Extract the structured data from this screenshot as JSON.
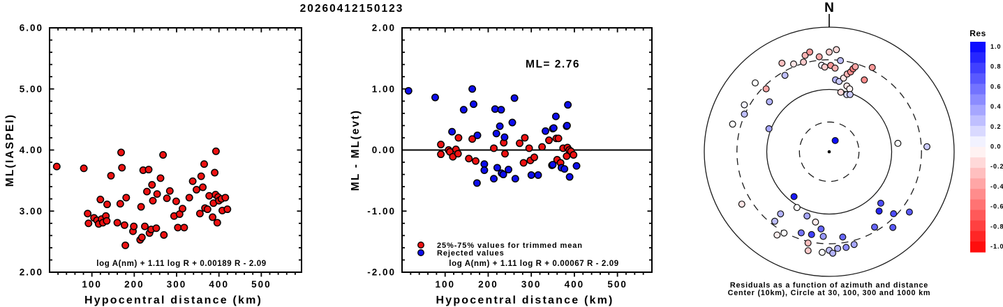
{
  "title": "20260412150123",
  "colors": {
    "marker_red": "#ee1111",
    "marker_blue": "#0d0dee",
    "axis": "#000000",
    "background": "#ffffff",
    "res_positive": "#0000ff",
    "res_zero": "#ffffff",
    "res_negative": "#ff0000"
  },
  "chart_data": [
    {
      "id": "ml_iaspei",
      "type": "scatter",
      "xlabel": "Hypocentral distance (km)",
      "ylabel": "ML(IASPEI)",
      "xlim": [
        0,
        595
      ],
      "ylim": [
        2.0,
        6.0
      ],
      "xticks": [
        100,
        200,
        300,
        400,
        500
      ],
      "xtick_labels": [
        "100",
        "200",
        "300",
        "400",
        "500"
      ],
      "yticks": [
        2,
        3,
        4,
        5,
        6
      ],
      "ytick_labels": [
        "2.00",
        "3.00",
        "4.00",
        "5.00",
        "6.00"
      ],
      "x_minor_step": 20,
      "y_minor_step": 0.2,
      "grid": false,
      "annotation": "log A(nm) + 1.11 log R + 0.00189 R - 2.09",
      "series": [
        {
          "name": "ML station values",
          "color_key": "marker_red",
          "points": [
            [
              17,
              3.73
            ],
            [
              81,
              3.7
            ],
            [
              90,
              2.96
            ],
            [
              92,
              2.8
            ],
            [
              105,
              2.89
            ],
            [
              112,
              2.85
            ],
            [
              116,
              2.79
            ],
            [
              120,
              3.19
            ],
            [
              123,
              2.87
            ],
            [
              126,
              2.81
            ],
            [
              133,
              2.92
            ],
            [
              135,
              2.84
            ],
            [
              136,
              3.11
            ],
            [
              145,
              3.58
            ],
            [
              160,
              2.81
            ],
            [
              167,
              3.12
            ],
            [
              169,
              3.96
            ],
            [
              171,
              3.71
            ],
            [
              177,
              2.77
            ],
            [
              179,
              2.44
            ],
            [
              181,
              3.22
            ],
            [
              197,
              2.67
            ],
            [
              199,
              2.75
            ],
            [
              214,
              2.53
            ],
            [
              216,
              3.07
            ],
            [
              218,
              2.57
            ],
            [
              221,
              3.67
            ],
            [
              225,
              2.75
            ],
            [
              230,
              3.32
            ],
            [
              234,
              3.68
            ],
            [
              236,
              2.64
            ],
            [
              240,
              2.7
            ],
            [
              242,
              3.43
            ],
            [
              244,
              3.17
            ],
            [
              252,
              2.72
            ],
            [
              254,
              3.28
            ],
            [
              262,
              3.54
            ],
            [
              268,
              3.92
            ],
            [
              270,
              2.61
            ],
            [
              277,
              3.21
            ],
            [
              284,
              3.33
            ],
            [
              294,
              2.92
            ],
            [
              299,
              3.16
            ],
            [
              303,
              2.73
            ],
            [
              307,
              2.95
            ],
            [
              314,
              3.04
            ],
            [
              318,
              2.73
            ],
            [
              330,
              3.22
            ],
            [
              338,
              3.49
            ],
            [
              347,
              3.35
            ],
            [
              355,
              2.96
            ],
            [
              358,
              3.57
            ],
            [
              362,
              3.39
            ],
            [
              365,
              3.77
            ],
            [
              367,
              3.05
            ],
            [
              373,
              3.03
            ],
            [
              377,
              3.25
            ],
            [
              385,
              2.9
            ],
            [
              387,
              3.13
            ],
            [
              390,
              3.63
            ],
            [
              392,
              3.27
            ],
            [
              393,
              3.98
            ],
            [
              396,
              2.81
            ],
            [
              398,
              3.23
            ],
            [
              400,
              3.17
            ],
            [
              406,
              3.2
            ],
            [
              408,
              3.01
            ],
            [
              415,
              3.22
            ],
            [
              420,
              3.03
            ]
          ]
        }
      ]
    },
    {
      "id": "ml_residual",
      "type": "scatter",
      "ml_label": "ML= 2.76",
      "xlabel": "Hypocentral distance (km)",
      "ylabel": "ML - ML(evt)",
      "xlim": [
        0,
        580
      ],
      "ylim": [
        -2.0,
        2.0
      ],
      "xticks": [
        100,
        200,
        300,
        400,
        500
      ],
      "xtick_labels": [
        "100",
        "200",
        "300",
        "400",
        "500"
      ],
      "yticks": [
        -2,
        -1,
        0,
        1,
        2
      ],
      "ytick_labels": [
        "-2.00",
        "-1.00",
        "0.00",
        "1.00",
        "2.00"
      ],
      "x_minor_step": 20,
      "y_minor_step": 0.2,
      "grid": false,
      "hline": 0.0,
      "annotation": "log A(nm) + 1.11 log R + 0.00067 R - 2.09",
      "legend": [
        {
          "label": "25%-75% values for trimmed mean",
          "color_key": "marker_red"
        },
        {
          "label": "Rejected values",
          "color_key": "marker_blue"
        }
      ],
      "series": [
        {
          "name": "25%-75% values for trimmed mean",
          "color_key": "marker_red",
          "points": [
            [
              90,
              0.09
            ],
            [
              90,
              -0.07
            ],
            [
              108,
              0.0
            ],
            [
              111,
              -0.03
            ],
            [
              118,
              -0.11
            ],
            [
              125,
              0.01
            ],
            [
              130,
              -0.06
            ],
            [
              131,
              0.2
            ],
            [
              155,
              -0.14
            ],
            [
              163,
              0.18
            ],
            [
              171,
              -0.18
            ],
            [
              213,
              0.03
            ],
            [
              236,
              0.12
            ],
            [
              239,
              -0.06
            ],
            [
              273,
              0.11
            ],
            [
              282,
              -0.21
            ],
            [
              285,
              0.2
            ],
            [
              295,
              0.03
            ],
            [
              298,
              -0.17
            ],
            [
              307,
              -0.12
            ],
            [
              325,
              0.05
            ],
            [
              341,
              0.16
            ],
            [
              358,
              0.19
            ],
            [
              363,
              0.19
            ],
            [
              360,
              -0.16
            ],
            [
              368,
              -0.21
            ],
            [
              374,
              0.03
            ],
            [
              382,
              -0.1
            ],
            [
              384,
              0.04
            ],
            [
              388,
              0.0
            ],
            [
              392,
              -0.02
            ],
            [
              398,
              -0.08
            ]
          ]
        },
        {
          "name": "Rejected values",
          "color_key": "marker_blue",
          "points": [
            [
              15,
              0.97
            ],
            [
              77,
              0.86
            ],
            [
              116,
              0.3
            ],
            [
              143,
              0.66
            ],
            [
              163,
              1.0
            ],
            [
              166,
              0.75
            ],
            [
              174,
              -0.54
            ],
            [
              175,
              0.24
            ],
            [
              191,
              -0.23
            ],
            [
              191,
              -0.33
            ],
            [
              213,
              -0.47
            ],
            [
              216,
              0.67
            ],
            [
              219,
              0.27
            ],
            [
              221,
              -0.29
            ],
            [
              227,
              0.39
            ],
            [
              230,
              0.66
            ],
            [
              231,
              -0.38
            ],
            [
              235,
              -0.4
            ],
            [
              238,
              0.21
            ],
            [
              247,
              -0.32
            ],
            [
              256,
              0.45
            ],
            [
              261,
              0.85
            ],
            [
              263,
              -0.47
            ],
            [
              300,
              -0.41
            ],
            [
              316,
              -0.41
            ],
            [
              333,
              0.31
            ],
            [
              348,
              -0.25
            ],
            [
              350,
              0.35
            ],
            [
              350,
              -0.24
            ],
            [
              352,
              0.36
            ],
            [
              357,
              0.55
            ],
            [
              370,
              -0.29
            ],
            [
              377,
              -0.31
            ],
            [
              382,
              0.39
            ],
            [
              383,
              0.4
            ],
            [
              385,
              0.74
            ],
            [
              389,
              -0.44
            ],
            [
              405,
              -0.26
            ]
          ]
        }
      ]
    },
    {
      "id": "azimuth_polar",
      "type": "polar_scatter",
      "north_label": "N",
      "center_km": 10,
      "circles_km": [
        30,
        100,
        300,
        1000
      ],
      "circle_styles": [
        "dashed",
        "solid",
        "dashed",
        "solid"
      ],
      "caption": [
        "Residuals as a function of azimuth and distance",
        "Center (10km), Circle at 30, 100, 300 and 1000 km"
      ],
      "colorbar": {
        "title": "Res",
        "min": -1.0,
        "max": 1.0,
        "segments": 20,
        "tick_labels": [
          "1.0",
          "0.8",
          "0.6",
          "0.4",
          "0.2",
          "0.0",
          "-0.2",
          "-0.4",
          "-0.6",
          "-0.8",
          "-1.0"
        ]
      },
      "points_format": [
        "azimuth_deg",
        "distance_km",
        "residual"
      ],
      "points": [
        [
          313,
          417,
          0.0
        ],
        [
          315,
          268,
          -0.35
        ],
        [
          299,
          358,
          0.05
        ],
        [
          310,
          177,
          0.3
        ],
        [
          294,
          306,
          0.25
        ],
        [
          286,
          406,
          0.0
        ],
        [
          291,
          108,
          0.35
        ],
        [
          330,
          261,
          0.25
        ],
        [
          332,
          408,
          -0.25
        ],
        [
          338,
          331,
          -0.1
        ],
        [
          344,
          314,
          -0.2
        ],
        [
          346,
          392,
          -0.3
        ],
        [
          349,
          428,
          -0.4
        ],
        [
          354,
          341,
          -0.35
        ],
        [
          355,
          247,
          0.05
        ],
        [
          357,
          230,
          -0.2
        ],
        [
          0,
          398,
          -0.2
        ],
        [
          4,
          440,
          -0.15
        ],
        [
          1,
          243,
          -0.4
        ],
        [
          4,
          222,
          -0.3
        ],
        [
          7,
          298,
          0.25
        ],
        [
          5,
          144,
          0.3
        ],
        [
          8,
          138,
          0.2
        ],
        [
          11,
          160,
          -0.1
        ],
        [
          13,
          191,
          -0.3
        ],
        [
          15,
          212,
          -0.45
        ],
        [
          16,
          243,
          -0.5
        ],
        [
          17,
          268,
          -0.35
        ],
        [
          15,
          124,
          -0.1
        ],
        [
          18,
          115,
          -0.05
        ],
        [
          11,
          94,
          -0.15
        ],
        [
          17,
          91,
          0.15
        ],
        [
          20,
          95,
          0.2
        ],
        [
          26,
          192,
          -0.45
        ],
        [
          27,
          330,
          -0.4
        ],
        [
          83,
          128,
          0.0
        ],
        [
          87,
          368,
          0.2
        ],
        [
          28,
          16,
          0.95
        ],
        [
          218,
          82,
          0.9
        ],
        [
          239,
          428,
          -0.1
        ],
        [
          210,
          108,
          0.0
        ],
        [
          218,
          184,
          0.3
        ],
        [
          199,
          123,
          0.35
        ],
        [
          218,
          260,
          0.25
        ],
        [
          191,
          141,
          -0.08
        ],
        [
          186,
          176,
          0.6
        ],
        [
          135,
          147,
          0.7
        ],
        [
          140,
          175,
          0.85
        ],
        [
          134,
          270,
          0.7
        ],
        [
          127,
          405,
          0.65
        ],
        [
          149,
          257,
          0.6
        ],
        [
          140,
          385,
          0.65
        ],
        [
          212,
          376,
          -0.07
        ],
        [
          209,
          310,
          0.0
        ],
        [
          199,
          238,
          0.55
        ],
        [
          192,
          228,
          0.75
        ],
        [
          184,
          230,
          0.4
        ],
        [
          171,
          243,
          0.6
        ],
        [
          193,
          319,
          -0.25
        ],
        [
          165,
          347,
          0.35
        ],
        [
          192,
          420,
          -0.2
        ],
        [
          184,
          415,
          0.0
        ],
        [
          180,
          382,
          0.25
        ],
        [
          175,
          361,
          0.3
        ],
        [
          170,
          362,
          0.45
        ],
        [
          178,
          425,
          0.3
        ]
      ]
    }
  ]
}
